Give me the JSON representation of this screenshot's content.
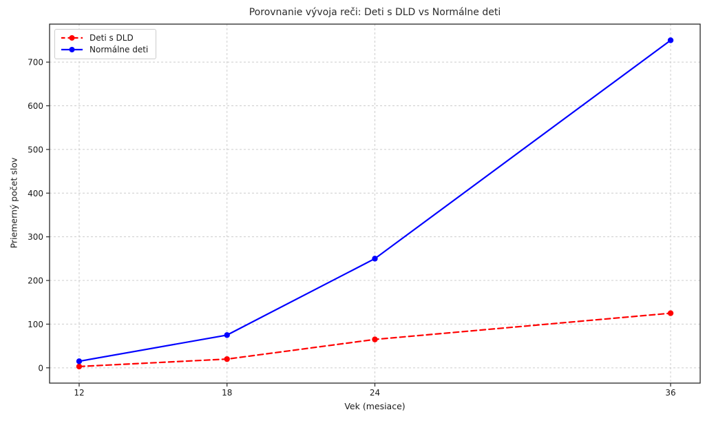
{
  "chart_data": {
    "type": "line",
    "title": "Porovnanie vývoja reči: Deti s DLD vs Normálne deti",
    "xlabel": "Vek (mesiace)",
    "ylabel": "Priemerný počet slov",
    "x": [
      12,
      18,
      24,
      36
    ],
    "series": [
      {
        "name": "Deti s DLD",
        "values": [
          3,
          20,
          65,
          125
        ],
        "color": "#ff0000",
        "line_style": "dashed",
        "marker": "circle"
      },
      {
        "name": "Normálne deti",
        "values": [
          15,
          75,
          250,
          750
        ],
        "color": "#0000ff",
        "line_style": "solid",
        "marker": "circle"
      }
    ],
    "x_ticks": [
      12,
      18,
      24,
      36
    ],
    "y_ticks": [
      0,
      100,
      200,
      300,
      400,
      500,
      600,
      700
    ],
    "xlim": [
      10.8,
      37.2
    ],
    "ylim": [
      -35,
      787
    ],
    "grid": true,
    "grid_style": "dashed",
    "grid_color": "#cccccc",
    "spine_color": "#262626",
    "background_color": "#ffffff",
    "legend_position": "upper-left"
  }
}
